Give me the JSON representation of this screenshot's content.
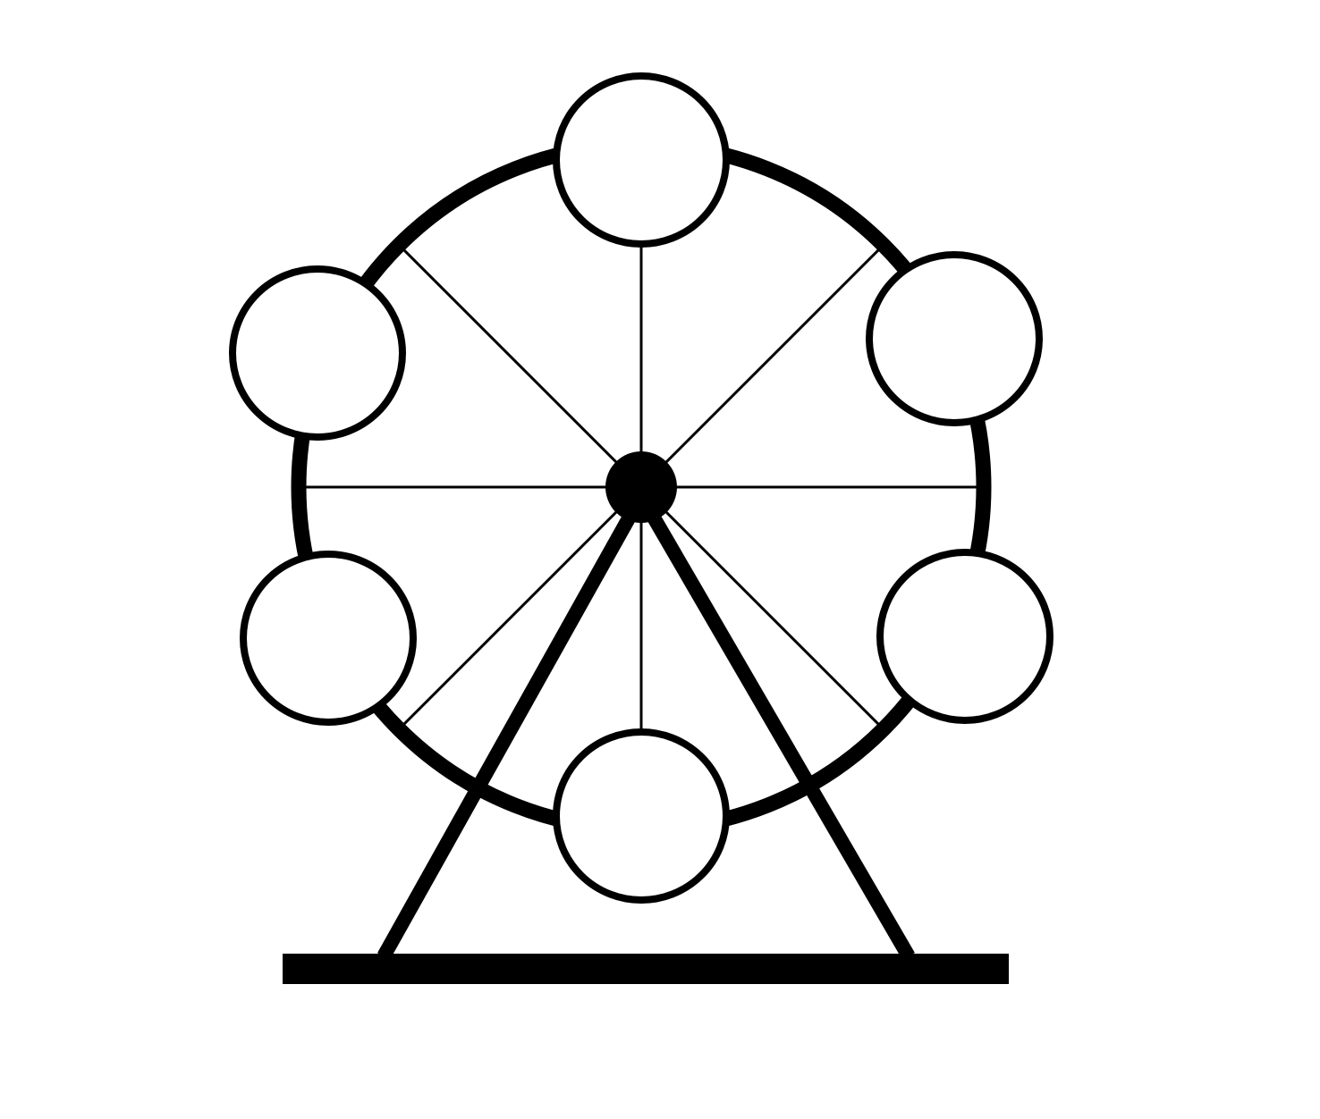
{
  "diagram": {
    "subject": "ferris wheel",
    "spoke_count": 8,
    "cabin_count": 6,
    "colors": {
      "background": "#ffffff",
      "stroke": "#000000",
      "cabin_fill": "#ffffff",
      "hub_fill": "#000000"
    },
    "icons": {
      "main": "ferris-wheel-icon",
      "cabin": "cabin-icon",
      "hub": "hub-icon"
    }
  }
}
